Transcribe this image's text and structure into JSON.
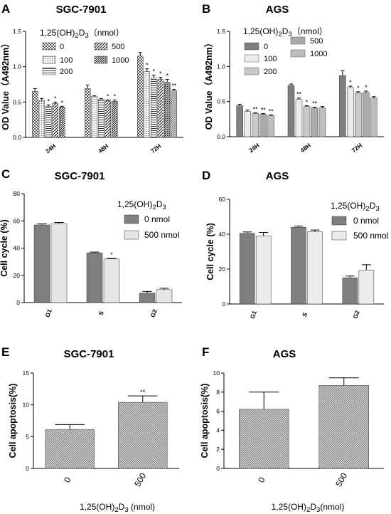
{
  "chart_data": [
    {
      "panel": "A",
      "title": "SGC-7901",
      "type": "bar",
      "ylabel": "OD Value（A492nm）",
      "ylim": [
        0,
        1.5
      ],
      "yticks": [
        0.0,
        0.5,
        1.0,
        1.5
      ],
      "categories": [
        "24H",
        "48H",
        "72H"
      ],
      "legend_title": "1,25(OH)2D3（nmol）",
      "series": [
        {
          "name": "0",
          "values": [
            0.65,
            0.69,
            1.15
          ],
          "errors": [
            0.04,
            0.05,
            0.05
          ],
          "sig": [
            "",
            "",
            ""
          ]
        },
        {
          "name": "100",
          "values": [
            0.52,
            0.58,
            0.93
          ],
          "errors": [
            0.03,
            0.01,
            0.04
          ],
          "sig": [
            "",
            "",
            "*"
          ]
        },
        {
          "name": "200",
          "values": [
            0.44,
            0.54,
            0.84
          ],
          "errors": [
            0.02,
            0.01,
            0.04
          ],
          "sig": [
            "*",
            "",
            "*"
          ]
        },
        {
          "name": "500",
          "values": [
            0.48,
            0.52,
            0.82
          ],
          "errors": [
            0.02,
            0.01,
            0.03
          ],
          "sig": [
            "*",
            "*",
            "*"
          ]
        },
        {
          "name": "1000",
          "values": [
            0.43,
            0.51,
            0.78
          ],
          "errors": [
            0.01,
            0.02,
            0.04
          ],
          "sig": [
            "*",
            "*",
            "*"
          ]
        },
        {
          "name": "",
          "values": [
            null,
            null,
            0.66
          ],
          "errors": [
            null,
            null,
            0.02
          ],
          "sig": [
            "",
            "",
            "**"
          ]
        }
      ]
    },
    {
      "panel": "B",
      "title": "AGS",
      "type": "bar",
      "ylabel": "OD Value（A492nm）",
      "ylim": [
        0,
        1.5
      ],
      "yticks": [
        0.0,
        0.5,
        1.0,
        1.5
      ],
      "categories": [
        "24H",
        "48H",
        "72H"
      ],
      "legend_title": "1,25(OH)2D3（nmol）",
      "series": [
        {
          "name": "0",
          "values": [
            0.44,
            0.73,
            0.87
          ],
          "errors": [
            0.02,
            0.02,
            0.07
          ],
          "sig": [
            "",
            "",
            ""
          ]
        },
        {
          "name": "100",
          "values": [
            0.36,
            0.53,
            0.7
          ],
          "errors": [
            0.02,
            0.02,
            0.02
          ],
          "sig": [
            "",
            "**",
            "*"
          ]
        },
        {
          "name": "200",
          "values": [
            0.33,
            0.43,
            0.62
          ],
          "errors": [
            0.01,
            0.01,
            0.02
          ],
          "sig": [
            "**",
            "*",
            "*"
          ]
        },
        {
          "name": "500",
          "values": [
            0.32,
            0.41,
            0.63
          ],
          "errors": [
            0.01,
            0.01,
            0.02
          ],
          "sig": [
            "**",
            "**",
            "*"
          ]
        },
        {
          "name": "1000",
          "values": [
            0.3,
            0.41,
            0.55
          ],
          "errors": [
            0.01,
            0.02,
            0.02
          ],
          "sig": [
            "**",
            "",
            ""
          ]
        }
      ]
    },
    {
      "panel": "C",
      "title": "SGC-7901",
      "type": "bar",
      "ylabel": "Cell cycle (%)",
      "ylim": [
        0,
        80
      ],
      "yticks": [
        0,
        20,
        40,
        60,
        80
      ],
      "categories": [
        "G1",
        "S",
        "G2"
      ],
      "legend_title": "1,25(OH)2D3",
      "series": [
        {
          "name": "0 nmol",
          "values": [
            57.0,
            36.5,
            7.0
          ],
          "errors": [
            0.8,
            0.6,
            1.2
          ],
          "sig": [
            "",
            "",
            ""
          ]
        },
        {
          "name": "500 nmol",
          "values": [
            58.0,
            32.0,
            9.5
          ],
          "errors": [
            0.8,
            0.4,
            1.0
          ],
          "sig": [
            "",
            "*",
            ""
          ]
        }
      ]
    },
    {
      "panel": "D",
      "title": "AGS",
      "type": "bar",
      "ylabel": "Cell cycle (%)",
      "ylim": [
        0,
        60
      ],
      "yticks": [
        0,
        20,
        40,
        60
      ],
      "categories": [
        "G1",
        "S",
        "G2"
      ],
      "legend_title": "1,25(OH)2D3",
      "series": [
        {
          "name": "0 nmol",
          "values": [
            40.5,
            44.0,
            15.0
          ],
          "errors": [
            0.8,
            0.7,
            1.0
          ],
          "sig": [
            "",
            "",
            ""
          ]
        },
        {
          "name": "500 nmol",
          "values": [
            39.0,
            41.5,
            19.5
          ],
          "errors": [
            2.0,
            0.9,
            3.0
          ],
          "sig": [
            "",
            "",
            ""
          ]
        }
      ]
    },
    {
      "panel": "E",
      "title": "SGC-7901",
      "type": "bar",
      "ylabel": "Cell apoptosis(%)",
      "ylim": [
        0,
        15
      ],
      "yticks": [
        0,
        5,
        10,
        15
      ],
      "categories": [
        "0",
        "500"
      ],
      "xlabel": "1,25(OH)2D3 (nmol)",
      "series": [
        {
          "name": "",
          "values": [
            6.1,
            10.4
          ],
          "errors": [
            0.8,
            1.0
          ],
          "sig": [
            "",
            "**"
          ]
        }
      ]
    },
    {
      "panel": "F",
      "title": "AGS",
      "type": "bar",
      "ylabel": "Cell apoptosis(%)",
      "ylim": [
        0,
        10
      ],
      "yticks": [
        0,
        2,
        4,
        6,
        8,
        10
      ],
      "categories": [
        "0",
        "500"
      ],
      "xlabel": "1,25(OH)2D3(nmol)",
      "series": [
        {
          "name": "",
          "values": [
            6.2,
            8.7
          ],
          "errors": [
            1.8,
            0.8
          ],
          "sig": [
            "",
            ""
          ]
        }
      ]
    }
  ]
}
